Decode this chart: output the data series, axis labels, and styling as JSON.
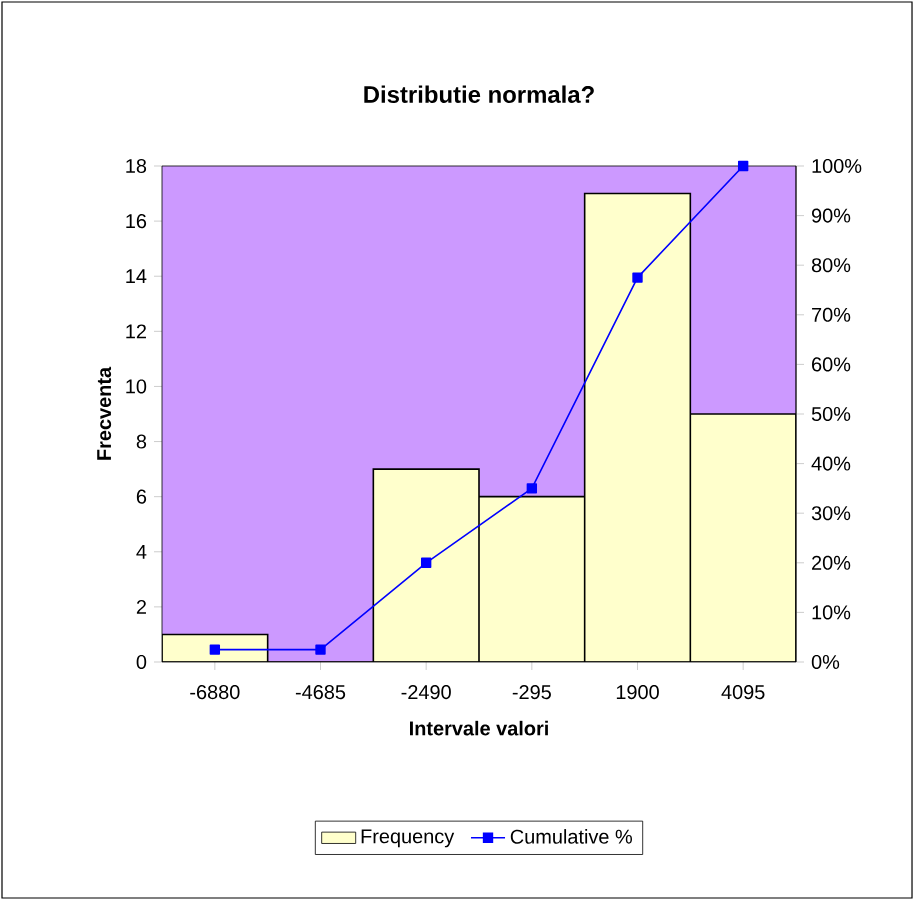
{
  "chart_data": {
    "type": "bar",
    "title": "Distributie normala?",
    "xlabel": "Intervale valori",
    "ylabel": "Frecventa",
    "categories": [
      "-6880",
      "-4685",
      "-2490",
      "-295",
      "1900",
      "4095"
    ],
    "series": [
      {
        "name": "Frequency",
        "color": "#ffffcc",
        "values": [
          1,
          0,
          7,
          6,
          17,
          9
        ]
      },
      {
        "name": "Cumulative %",
        "type": "line",
        "axis": "y2",
        "color": "#0000ff",
        "marker": "square",
        "values": [
          2.5,
          2.5,
          20,
          35,
          77.5,
          100
        ]
      }
    ],
    "ylim": [
      0,
      18
    ],
    "yticks": [
      0,
      2,
      4,
      6,
      8,
      10,
      12,
      14,
      16,
      18
    ],
    "y2lim": [
      0,
      100
    ],
    "y2ticks": [
      {
        "value": 0,
        "label": "0%"
      },
      {
        "value": 10,
        "label": "10%"
      },
      {
        "value": 20,
        "label": "20%"
      },
      {
        "value": 30,
        "label": "30%"
      },
      {
        "value": 40,
        "label": "40%"
      },
      {
        "value": 50,
        "label": "50%"
      },
      {
        "value": 60,
        "label": "60%"
      },
      {
        "value": 70,
        "label": "70%"
      },
      {
        "value": 80,
        "label": "80%"
      },
      {
        "value": 90,
        "label": "90%"
      },
      {
        "value": 100,
        "label": "100%"
      }
    ],
    "legend": "bottom"
  }
}
